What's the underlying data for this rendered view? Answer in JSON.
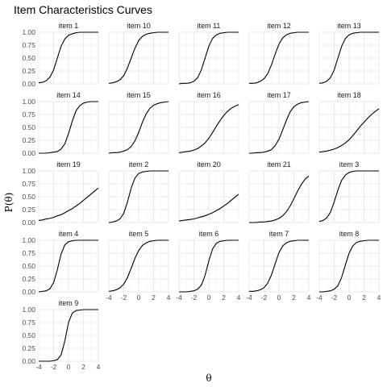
{
  "chart_data": {
    "type": "line",
    "title": "Item Characteristics Curves",
    "xlabel": "θ",
    "ylabel": "P(θ)",
    "xlim": [
      -4,
      4
    ],
    "ylim": [
      0,
      1
    ],
    "x_ticks": [
      "-4",
      "-2",
      "0",
      "2",
      "4"
    ],
    "y_ticks": [
      "0.00",
      "0.25",
      "0.50",
      "0.75",
      "1.00"
    ],
    "grid": true,
    "x": [
      -4,
      -3.5,
      -3,
      -2.5,
      -2,
      -1.5,
      -1,
      -0.5,
      0,
      0.5,
      1,
      1.5,
      2,
      2.5,
      3,
      3.5,
      4
    ],
    "series": [
      {
        "name": "item 1",
        "values": [
          0.02,
          0.03,
          0.06,
          0.13,
          0.27,
          0.5,
          0.73,
          0.87,
          0.94,
          0.97,
          0.99,
          1.0,
          1.0,
          1.0,
          1.0,
          1.0,
          1.0
        ]
      },
      {
        "name": "item 10",
        "values": [
          0.01,
          0.02,
          0.04,
          0.08,
          0.16,
          0.31,
          0.5,
          0.69,
          0.84,
          0.92,
          0.96,
          0.98,
          0.99,
          1.0,
          1.0,
          1.0,
          1.0
        ]
      },
      {
        "name": "item 11",
        "values": [
          0.0,
          0.01,
          0.01,
          0.02,
          0.05,
          0.12,
          0.27,
          0.5,
          0.73,
          0.88,
          0.95,
          0.98,
          0.99,
          1.0,
          1.0,
          1.0,
          1.0
        ]
      },
      {
        "name": "item 12",
        "values": [
          0.01,
          0.01,
          0.02,
          0.05,
          0.1,
          0.2,
          0.37,
          0.58,
          0.77,
          0.89,
          0.95,
          0.98,
          0.99,
          1.0,
          1.0,
          1.0,
          1.0
        ]
      },
      {
        "name": "item 13",
        "values": [
          0.01,
          0.02,
          0.05,
          0.12,
          0.27,
          0.5,
          0.73,
          0.88,
          0.95,
          0.98,
          0.99,
          1.0,
          1.0,
          1.0,
          1.0,
          1.0,
          1.0
        ]
      },
      {
        "name": "item 14",
        "values": [
          0.0,
          0.0,
          0.0,
          0.01,
          0.02,
          0.03,
          0.08,
          0.18,
          0.38,
          0.62,
          0.82,
          0.92,
          0.97,
          0.99,
          1.0,
          1.0,
          1.0
        ]
      },
      {
        "name": "item 15",
        "values": [
          0.0,
          0.01,
          0.01,
          0.02,
          0.04,
          0.07,
          0.13,
          0.24,
          0.4,
          0.6,
          0.76,
          0.87,
          0.93,
          0.96,
          0.98,
          0.99,
          1.0
        ]
      },
      {
        "name": "item 16",
        "values": [
          0.01,
          0.02,
          0.03,
          0.04,
          0.06,
          0.09,
          0.14,
          0.2,
          0.29,
          0.4,
          0.52,
          0.63,
          0.73,
          0.81,
          0.87,
          0.91,
          0.94
        ]
      },
      {
        "name": "item 17",
        "values": [
          0.0,
          0.0,
          0.01,
          0.01,
          0.02,
          0.04,
          0.07,
          0.15,
          0.27,
          0.45,
          0.64,
          0.8,
          0.9,
          0.95,
          0.98,
          0.99,
          1.0
        ]
      },
      {
        "name": "item 18",
        "values": [
          0.02,
          0.03,
          0.04,
          0.06,
          0.08,
          0.11,
          0.15,
          0.2,
          0.26,
          0.34,
          0.43,
          0.52,
          0.6,
          0.68,
          0.75,
          0.81,
          0.86
        ]
      },
      {
        "name": "item 19",
        "values": [
          0.04,
          0.05,
          0.07,
          0.08,
          0.1,
          0.13,
          0.15,
          0.19,
          0.23,
          0.27,
          0.32,
          0.37,
          0.43,
          0.49,
          0.55,
          0.61,
          0.67
        ]
      },
      {
        "name": "item 2",
        "values": [
          0.0,
          0.01,
          0.03,
          0.07,
          0.18,
          0.4,
          0.67,
          0.86,
          0.95,
          0.98,
          0.99,
          1.0,
          1.0,
          1.0,
          1.0,
          1.0,
          1.0
        ]
      },
      {
        "name": "item 20",
        "values": [
          0.03,
          0.04,
          0.05,
          0.06,
          0.07,
          0.09,
          0.11,
          0.13,
          0.16,
          0.19,
          0.23,
          0.27,
          0.32,
          0.37,
          0.43,
          0.49,
          0.55
        ]
      },
      {
        "name": "item 21",
        "values": [
          0.0,
          0.0,
          0.0,
          0.01,
          0.01,
          0.02,
          0.03,
          0.05,
          0.08,
          0.13,
          0.21,
          0.32,
          0.46,
          0.61,
          0.74,
          0.84,
          0.9
        ]
      },
      {
        "name": "item 3",
        "values": [
          0.02,
          0.04,
          0.09,
          0.2,
          0.4,
          0.63,
          0.82,
          0.92,
          0.97,
          0.99,
          1.0,
          1.0,
          1.0,
          1.0,
          1.0,
          1.0,
          1.0
        ]
      },
      {
        "name": "item 4",
        "values": [
          0.0,
          0.01,
          0.02,
          0.06,
          0.18,
          0.43,
          0.73,
          0.91,
          0.97,
          0.99,
          1.0,
          1.0,
          1.0,
          1.0,
          1.0,
          1.0,
          1.0
        ]
      },
      {
        "name": "item 5",
        "values": [
          0.01,
          0.02,
          0.04,
          0.08,
          0.15,
          0.28,
          0.46,
          0.65,
          0.8,
          0.9,
          0.95,
          0.98,
          0.99,
          1.0,
          1.0,
          1.0,
          1.0
        ]
      },
      {
        "name": "item 6",
        "values": [
          0.0,
          0.0,
          0.0,
          0.01,
          0.02,
          0.05,
          0.13,
          0.32,
          0.6,
          0.83,
          0.94,
          0.98,
          0.99,
          1.0,
          1.0,
          1.0,
          1.0
        ]
      },
      {
        "name": "item 7",
        "values": [
          0.01,
          0.01,
          0.02,
          0.04,
          0.08,
          0.17,
          0.33,
          0.55,
          0.76,
          0.89,
          0.95,
          0.98,
          0.99,
          1.0,
          1.0,
          1.0,
          1.0
        ]
      },
      {
        "name": "item 8",
        "values": [
          0.0,
          0.0,
          0.01,
          0.02,
          0.05,
          0.12,
          0.28,
          0.52,
          0.75,
          0.89,
          0.96,
          0.98,
          0.99,
          1.0,
          1.0,
          1.0,
          1.0
        ]
      },
      {
        "name": "item 9",
        "values": [
          0.0,
          0.0,
          0.0,
          0.0,
          0.01,
          0.03,
          0.12,
          0.39,
          0.75,
          0.93,
          0.98,
          0.99,
          1.0,
          1.0,
          1.0,
          1.0,
          1.0
        ]
      }
    ]
  }
}
